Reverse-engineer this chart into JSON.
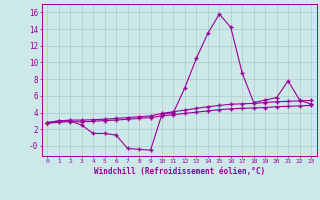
{
  "xlabel": "Windchill (Refroidissement éolien,°C)",
  "bg_color": "#cce8e8",
  "grid_color": "#aacccc",
  "line_color": "#990099",
  "x": [
    0,
    1,
    2,
    3,
    4,
    5,
    6,
    7,
    8,
    9,
    10,
    11,
    12,
    13,
    14,
    15,
    16,
    17,
    18,
    19,
    20,
    21,
    22,
    23
  ],
  "y_main": [
    2.8,
    3.0,
    3.0,
    2.5,
    1.5,
    1.5,
    1.3,
    -0.3,
    -0.4,
    -0.5,
    3.8,
    4.0,
    7.0,
    10.5,
    13.5,
    15.8,
    14.2,
    8.7,
    5.2,
    5.5,
    5.8,
    7.8,
    5.5,
    5.0
  ],
  "y_upper": [
    2.8,
    3.0,
    3.1,
    3.1,
    3.15,
    3.2,
    3.3,
    3.4,
    3.5,
    3.6,
    3.9,
    4.1,
    4.3,
    4.5,
    4.7,
    4.85,
    5.0,
    5.05,
    5.1,
    5.2,
    5.3,
    5.35,
    5.4,
    5.45
  ],
  "y_lower": [
    2.7,
    2.85,
    2.9,
    2.9,
    2.95,
    3.05,
    3.1,
    3.2,
    3.3,
    3.4,
    3.6,
    3.75,
    3.9,
    4.05,
    4.2,
    4.35,
    4.45,
    4.5,
    4.55,
    4.6,
    4.7,
    4.75,
    4.8,
    4.85
  ],
  "ylim": [
    -1.2,
    17
  ],
  "xlim": [
    -0.5,
    23.5
  ],
  "yticks": [
    0,
    2,
    4,
    6,
    8,
    10,
    12,
    14,
    16
  ],
  "ytick_labels": [
    "-0",
    "2",
    "4",
    "6",
    "8",
    "10",
    "12",
    "14",
    "16"
  ],
  "xticks": [
    0,
    1,
    2,
    3,
    4,
    5,
    6,
    7,
    8,
    9,
    10,
    11,
    12,
    13,
    14,
    15,
    16,
    17,
    18,
    19,
    20,
    21,
    22,
    23
  ],
  "marker_size": 2.5,
  "line_width": 0.8
}
